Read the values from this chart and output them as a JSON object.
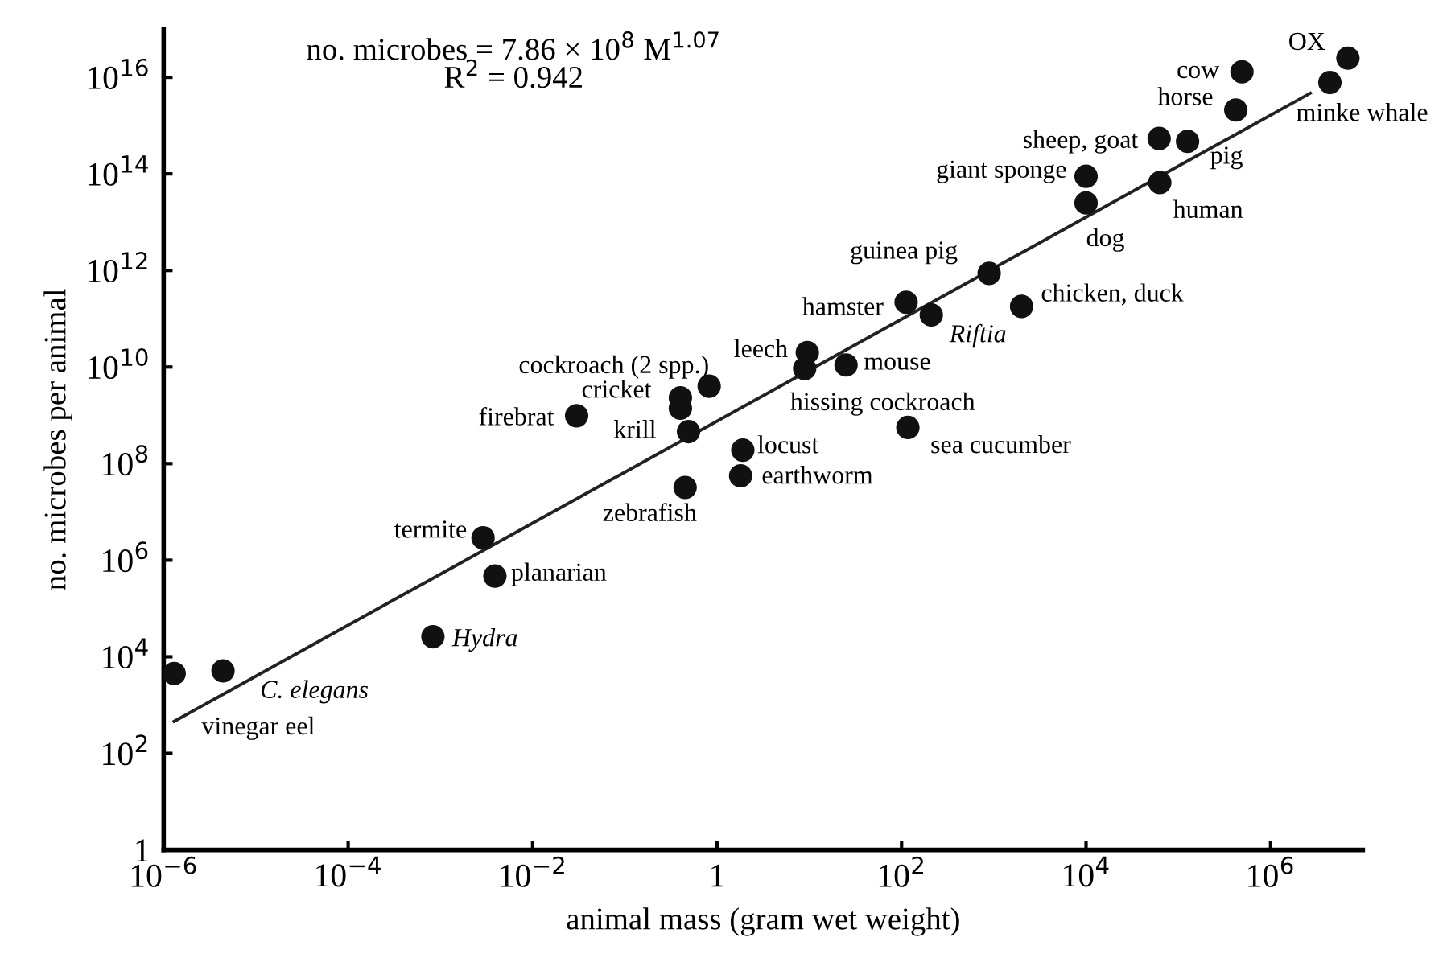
{
  "chart_data": {
    "type": "scatter",
    "xlabel": "animal mass (gram wet weight)",
    "ylabel": "no. microbes per animal",
    "log": "xy",
    "grid": false,
    "xlim": [
      1e-06,
      10000000.0
    ],
    "xticks": [
      {
        "value": 1e-06,
        "label": "10$^{−6}$"
      },
      {
        "value": 0.0001,
        "label": "10$^{−4}$"
      },
      {
        "value": 0.01,
        "label": "10$^{−2}$"
      },
      1,
      {
        "value": 100,
        "label": "10$^{2}$"
      },
      {
        "value": 10000.0,
        "label": "10$^{4}$"
      },
      {
        "value": 1000000.0,
        "label": "10$^{6}$"
      }
    ],
    "ylim": [
      1,
      1e+17
    ],
    "yticks": [
      1,
      {
        "value": 100,
        "label": "10$^{2}$"
      },
      {
        "value": 10000.0,
        "label": "10$^{4}$"
      },
      {
        "value": 1000000.0,
        "label": "10$^{6}$"
      },
      {
        "value": 100000000.0,
        "label": "10$^{8}$"
      },
      {
        "value": 10000000000.0,
        "label": "10$^{10}$"
      },
      {
        "value": 1000000000000.0,
        "label": "10$^{12}$"
      },
      {
        "value": 100000000000000.0,
        "label": "10$^{14}$"
      },
      {
        "value": 1e+16,
        "label": "10$^{16}$"
      }
    ],
    "series": [
      {
        "marker": "circle",
        "color": "#111111",
        "x": [
          0.82,
          0.4,
          0.4,
          0.03,
          0.49,
          1.9,
          1.8,
          0.45,
          0.0029,
          0.0039,
          0.00083,
          4.4e-06,
          1.3e-06,
          6900000.0,
          4400000.0,
          490000.0,
          420000.0,
          62000.0,
          126000.0,
          10000.0,
          10000.0,
          63000.0,
          890,
          112,
          210,
          2000,
          9.5,
          8.9,
          25,
          117
        ],
        "values": [
          4000000000.0,
          2300000000.0,
          1400000000.0,
          980000000.0,
          460000000.0,
          190000000.0,
          56000000.0,
          32000000.0,
          2900000.0,
          470000.0,
          26000.0,
          5100.0,
          4500.0,
          2.5e+16,
          7800000000000000.0,
          1.3e+16,
          2100000000000000.0,
          540000000000000.0,
          470000000000000.0,
          89000000000000.0,
          25000000000000.0,
          66000000000000.0,
          870000000000.0,
          220000000000.0,
          120000000000.0,
          180000000000.0,
          20000000000.0,
          9300000000.0,
          11000000000.0,
          560000000.0
        ]
      },
      {
        "type": "line",
        "color": "#222222",
        "x": [
          1.3e-06,
          2700000.0
        ],
        "values": [
          460.0,
          4700000000000000.0
        ]
      }
    ],
    "annotations": [
      "no. microbes = 7.86 × 10$^{8}$ M$^{1.07}$",
      "R$^{2}$ = 0.942",
      {
        "text": "cockroach (2 spp.)",
        "x": 0.82,
        "y": 4000000000.0
      },
      {
        "text": "cricket",
        "x": 0.4,
        "y": 2300000000.0
      },
      {
        "text": "firebrat",
        "x": 0.03,
        "y": 980000000.0
      },
      {
        "text": "krill",
        "x": 0.49,
        "y": 460000000.0
      },
      {
        "text": "locust",
        "x": 1.9,
        "y": 190000000.0
      },
      {
        "text": "earthworm",
        "x": 1.8,
        "y": 56000000.0
      },
      {
        "text": "zebrafish",
        "x": 0.45,
        "y": 32000000.0
      },
      {
        "text": "termite",
        "x": 0.0029,
        "y": 2900000.0
      },
      {
        "text": "planarian",
        "x": 0.0039,
        "y": 470000.0
      },
      {
        "text": "Hydra",
        "x": 0.00083,
        "y": 26000.0
      },
      {
        "text": "C. elegans",
        "x": 4.4e-06,
        "y": 5100.0
      },
      {
        "text": "vinegar eel",
        "x": 1.3e-06,
        "y": 4500.0
      },
      {
        "text": "OX",
        "x": 6900000.0,
        "y": 2.5e+16
      },
      {
        "text": "minke whale",
        "x": 4400000.0,
        "y": 7800000000000000.0
      },
      {
        "text": "cow",
        "x": 490000.0,
        "y": 1.3e+16
      },
      {
        "text": "horse",
        "x": 420000.0,
        "y": 2100000000000000.0
      },
      {
        "text": "sheep, goat",
        "x": 62000.0,
        "y": 540000000000000.0
      },
      {
        "text": "pig",
        "x": 126000.0,
        "y": 470000000000000.0
      },
      {
        "text": "giant sponge",
        "x": 10000.0,
        "y": 89000000000000.0
      },
      {
        "text": "dog",
        "x": 10000.0,
        "y": 25000000000000.0
      },
      {
        "text": "human",
        "x": 63000.0,
        "y": 66000000000000.0
      },
      {
        "text": "guinea pig",
        "x": 890,
        "y": 870000000000.0
      },
      {
        "text": "hamster",
        "x": 112,
        "y": 220000000000.0
      },
      {
        "text": "Riftia",
        "x": 210,
        "y": 120000000000.0
      },
      {
        "text": "chicken, duck",
        "x": 2000,
        "y": 180000000000.0
      },
      {
        "text": "leech",
        "x": 9.5,
        "y": 20000000000.0
      },
      {
        "text": "hissing cockroach",
        "x": 8.9,
        "y": 9300000000.0
      },
      {
        "text": "mouse",
        "x": 25,
        "y": 11000000000.0
      },
      {
        "text": "sea cucumber",
        "x": 117,
        "y": 560000000.0
      }
    ]
  }
}
